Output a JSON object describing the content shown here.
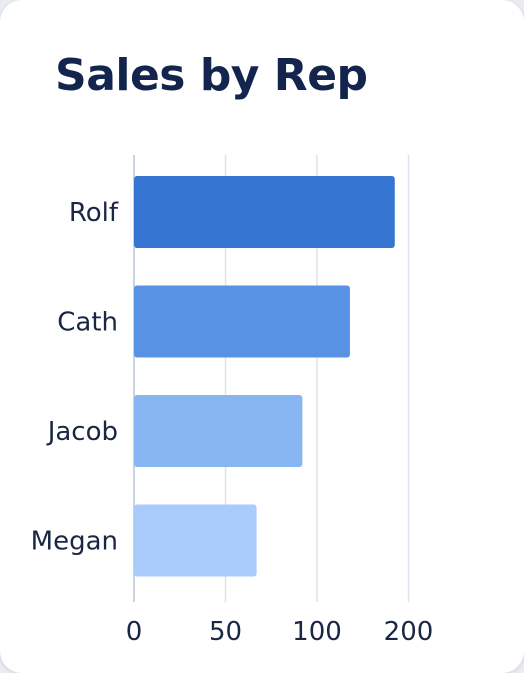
{
  "chart_data": {
    "type": "bar",
    "orientation": "horizontal",
    "title": "Sales by Rep",
    "xlabel": "",
    "ylabel": "",
    "categories": [
      "Rolf",
      "Cath",
      "Jacob",
      "Megan"
    ],
    "values": [
      185,
      136,
      92,
      67
    ],
    "bar_colors": [
      "#3674d1",
      "#5792e4",
      "#88b6f2",
      "#a8cbfb"
    ],
    "x_ticks": [
      "0",
      "50",
      "100",
      "200"
    ],
    "xlim": [
      0,
      200
    ],
    "grid": "vertical",
    "legend": "none"
  }
}
